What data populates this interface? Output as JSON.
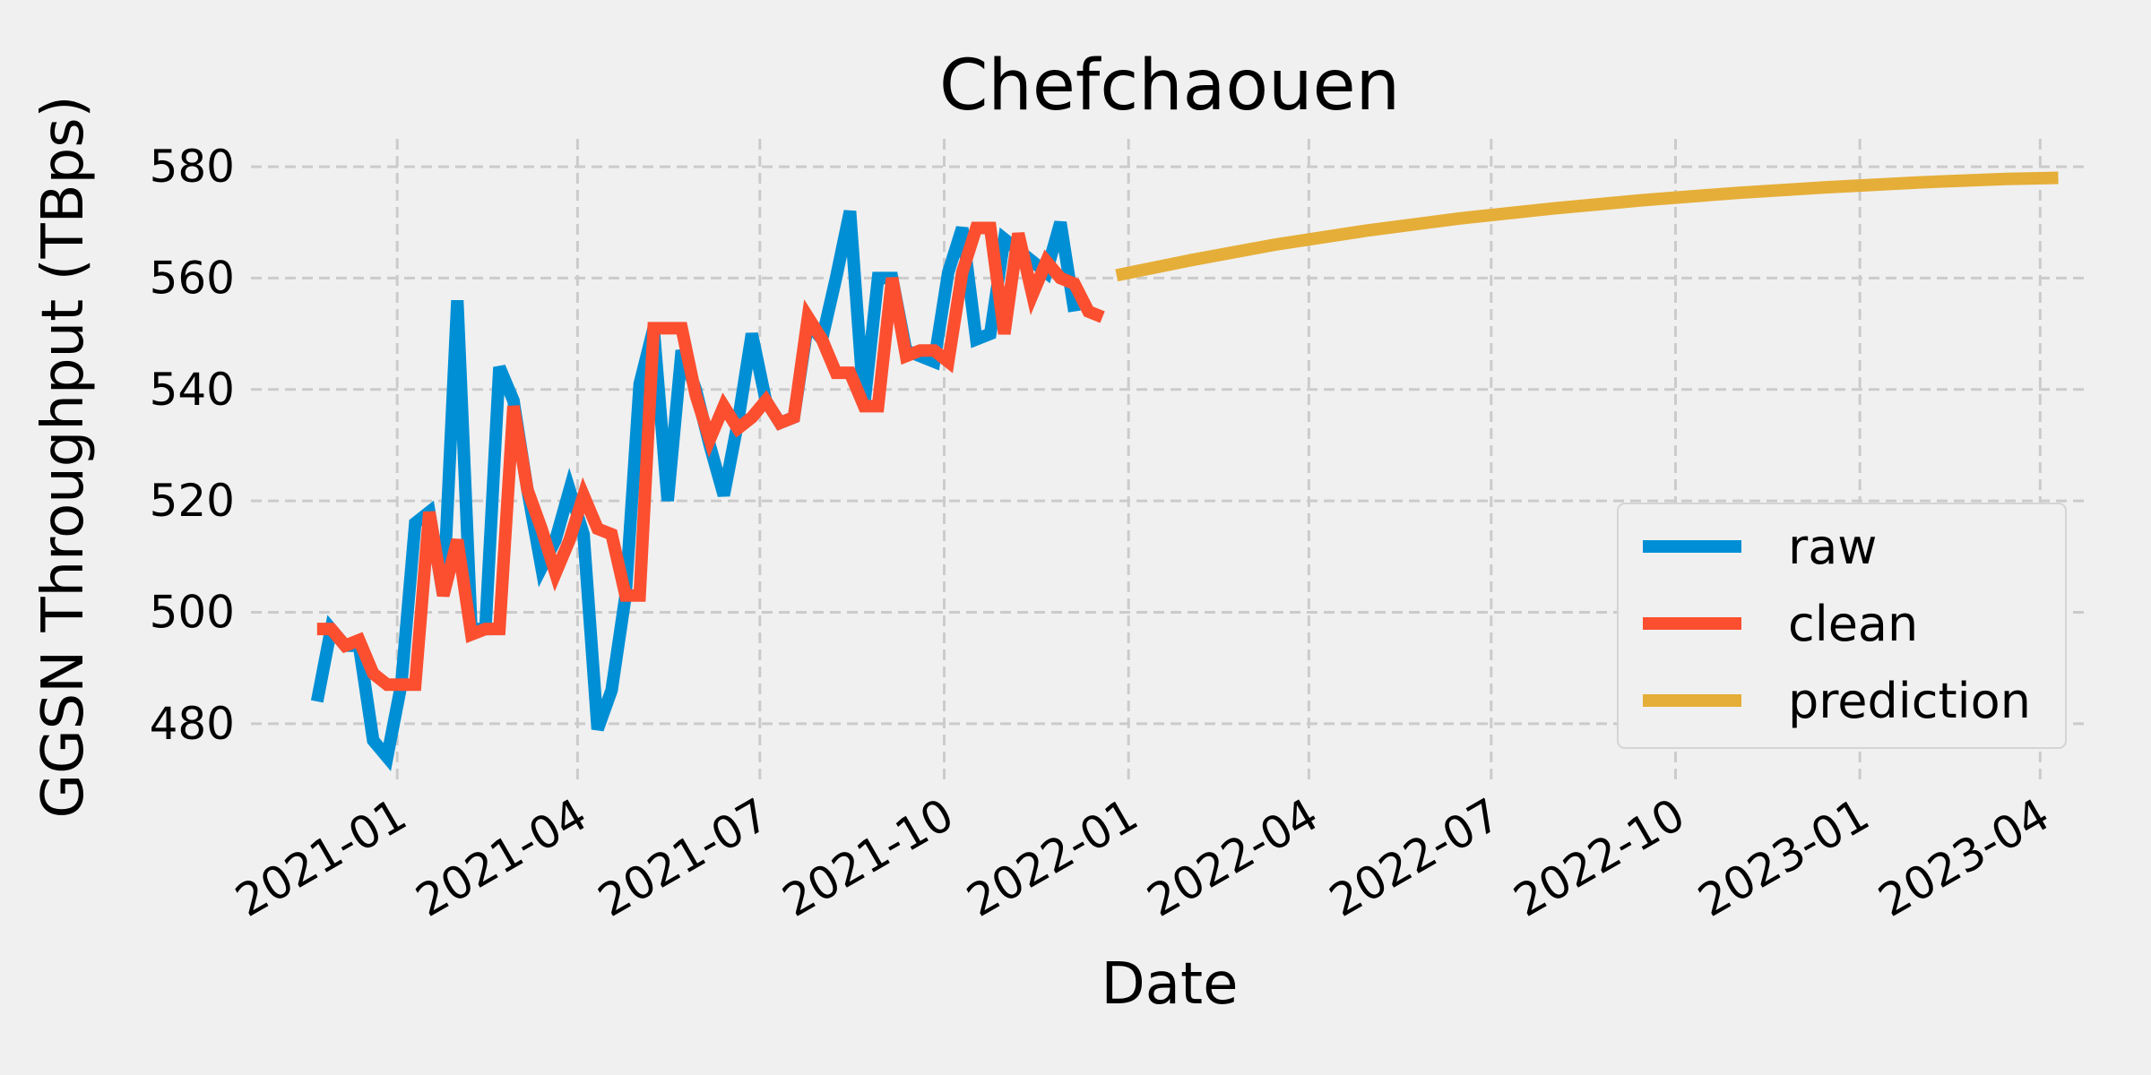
{
  "chart_data": {
    "type": "line",
    "title": "Chefchaouen",
    "xlabel": "Date",
    "ylabel": "GGSN Throughput (TBps)",
    "xlim": [
      "2020-10-20",
      "2023-04-25"
    ],
    "ylim": [
      470,
      585
    ],
    "x_ticks": [
      "2021-01-01",
      "2021-04-01",
      "2021-07-01",
      "2021-10-01",
      "2022-01-01",
      "2022-04-01",
      "2022-07-01",
      "2022-10-01",
      "2023-01-01",
      "2023-04-01"
    ],
    "x_tick_labels": [
      "2021-01",
      "2021-04",
      "2021-07",
      "2021-10",
      "2022-01",
      "2022-04",
      "2022-07",
      "2022-10",
      "2023-01",
      "2023-04"
    ],
    "y_ticks": [
      480,
      500,
      520,
      540,
      560,
      580
    ],
    "y_tick_labels": [
      "480",
      "500",
      "520",
      "540",
      "560",
      "580"
    ],
    "grid": true,
    "legend_position": "lower-right",
    "series": [
      {
        "name": "raw",
        "color": "#008fd5",
        "points": [
          [
            "2020-11-22",
            484
          ],
          [
            "2020-11-29",
            497
          ],
          [
            "2020-12-06",
            494
          ],
          [
            "2020-12-13",
            494
          ],
          [
            "2020-12-20",
            477
          ],
          [
            "2020-12-27",
            474
          ],
          [
            "2021-01-03",
            487
          ],
          [
            "2021-01-10",
            516
          ],
          [
            "2021-01-17",
            518
          ],
          [
            "2021-01-24",
            503
          ],
          [
            "2021-01-31",
            556
          ],
          [
            "2021-02-07",
            497
          ],
          [
            "2021-02-14",
            497
          ],
          [
            "2021-02-21",
            544
          ],
          [
            "2021-02-28",
            538
          ],
          [
            "2021-03-07",
            522
          ],
          [
            "2021-03-14",
            508
          ],
          [
            "2021-03-21",
            513
          ],
          [
            "2021-03-28",
            522
          ],
          [
            "2021-04-04",
            514
          ],
          [
            "2021-04-11",
            479
          ],
          [
            "2021-04-18",
            486
          ],
          [
            "2021-04-25",
            503
          ],
          [
            "2021-05-02",
            541
          ],
          [
            "2021-05-09",
            551
          ],
          [
            "2021-05-16",
            520
          ],
          [
            "2021-05-23",
            547
          ],
          [
            "2021-05-30",
            540
          ],
          [
            "2021-06-06",
            530
          ],
          [
            "2021-06-13",
            521
          ],
          [
            "2021-06-20",
            534
          ],
          [
            "2021-06-27",
            550
          ],
          [
            "2021-07-04",
            538
          ],
          [
            "2021-07-11",
            534
          ],
          [
            "2021-07-18",
            535
          ],
          [
            "2021-07-25",
            552
          ],
          [
            "2021-08-01",
            549
          ],
          [
            "2021-08-08",
            560
          ],
          [
            "2021-08-15",
            572
          ],
          [
            "2021-08-22",
            537
          ],
          [
            "2021-08-29",
            560
          ],
          [
            "2021-09-05",
            560
          ],
          [
            "2021-09-12",
            547
          ],
          [
            "2021-09-19",
            546
          ],
          [
            "2021-09-26",
            545
          ],
          [
            "2021-10-03",
            561
          ],
          [
            "2021-10-10",
            569
          ],
          [
            "2021-10-17",
            549
          ],
          [
            "2021-10-24",
            550
          ],
          [
            "2021-10-31",
            567
          ],
          [
            "2021-11-07",
            565
          ],
          [
            "2021-11-14",
            563
          ],
          [
            "2021-11-21",
            561
          ],
          [
            "2021-11-28",
            570
          ],
          [
            "2021-12-05",
            554
          ]
        ]
      },
      {
        "name": "clean",
        "color": "#fc4f30",
        "points": [
          [
            "2020-11-22",
            497
          ],
          [
            "2020-11-29",
            497
          ],
          [
            "2020-12-06",
            494
          ],
          [
            "2020-12-13",
            495
          ],
          [
            "2020-12-20",
            489
          ],
          [
            "2020-12-27",
            487
          ],
          [
            "2021-01-03",
            487
          ],
          [
            "2021-01-10",
            487
          ],
          [
            "2021-01-17",
            518
          ],
          [
            "2021-01-24",
            503
          ],
          [
            "2021-01-31",
            513
          ],
          [
            "2021-02-07",
            496
          ],
          [
            "2021-02-14",
            497
          ],
          [
            "2021-02-21",
            497
          ],
          [
            "2021-02-28",
            537
          ],
          [
            "2021-03-07",
            522
          ],
          [
            "2021-03-14",
            515
          ],
          [
            "2021-03-21",
            507
          ],
          [
            "2021-03-28",
            513
          ],
          [
            "2021-04-04",
            521
          ],
          [
            "2021-04-11",
            515
          ],
          [
            "2021-04-18",
            514
          ],
          [
            "2021-04-25",
            503
          ],
          [
            "2021-05-02",
            503
          ],
          [
            "2021-05-09",
            551
          ],
          [
            "2021-05-16",
            551
          ],
          [
            "2021-05-23",
            551
          ],
          [
            "2021-05-30",
            539
          ],
          [
            "2021-06-06",
            531
          ],
          [
            "2021-06-13",
            537
          ],
          [
            "2021-06-20",
            533
          ],
          [
            "2021-06-27",
            535
          ],
          [
            "2021-07-04",
            538
          ],
          [
            "2021-07-11",
            534
          ],
          [
            "2021-07-18",
            535
          ],
          [
            "2021-07-25",
            553
          ],
          [
            "2021-08-01",
            549
          ],
          [
            "2021-08-08",
            543
          ],
          [
            "2021-08-15",
            543
          ],
          [
            "2021-08-22",
            537
          ],
          [
            "2021-08-29",
            537
          ],
          [
            "2021-09-05",
            560
          ],
          [
            "2021-09-12",
            546
          ],
          [
            "2021-09-19",
            547
          ],
          [
            "2021-09-26",
            547
          ],
          [
            "2021-10-03",
            545
          ],
          [
            "2021-10-10",
            561
          ],
          [
            "2021-10-17",
            569
          ],
          [
            "2021-10-24",
            569
          ],
          [
            "2021-10-31",
            550
          ],
          [
            "2021-11-07",
            568
          ],
          [
            "2021-11-14",
            557
          ],
          [
            "2021-11-21",
            563
          ],
          [
            "2021-11-28",
            560
          ],
          [
            "2021-12-05",
            559
          ],
          [
            "2021-12-12",
            554
          ],
          [
            "2021-12-19",
            553
          ]
        ]
      },
      {
        "name": "prediction",
        "color": "#e5ae38",
        "points": [
          [
            "2021-12-26",
            560.5
          ],
          [
            "2022-02-01",
            563.2
          ],
          [
            "2022-03-15",
            566.0
          ],
          [
            "2022-05-01",
            568.6
          ],
          [
            "2022-06-15",
            570.7
          ],
          [
            "2022-08-01",
            572.5
          ],
          [
            "2022-09-15",
            574.0
          ],
          [
            "2022-11-01",
            575.3
          ],
          [
            "2022-12-15",
            576.3
          ],
          [
            "2023-02-01",
            577.2
          ],
          [
            "2023-03-15",
            577.8
          ],
          [
            "2023-04-10",
            578.0
          ]
        ]
      }
    ]
  }
}
